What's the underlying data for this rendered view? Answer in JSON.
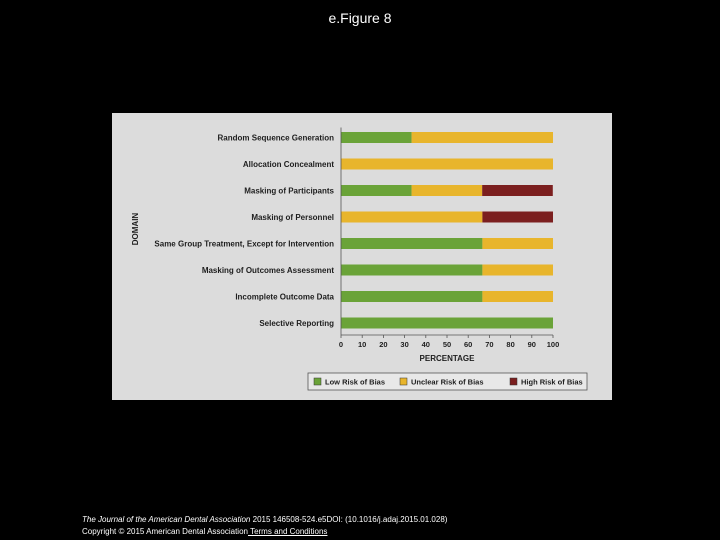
{
  "slide": {
    "title": "e.Figure 8"
  },
  "chart_data": {
    "type": "bar",
    "orientation": "horizontal",
    "stacked": true,
    "title": "",
    "xlabel": "PERCENTAGE",
    "ylabel": "DOMAIN",
    "xlim": [
      0,
      100
    ],
    "x_ticks": [
      "0",
      "10",
      "20",
      "30",
      "40",
      "50",
      "60",
      "70",
      "80",
      "90",
      "100"
    ],
    "legend_position": "bottom",
    "grid": false,
    "categories": [
      "Random Sequence Generation",
      "Allocation Concealment",
      "Masking of Participants",
      "Masking of Personnel",
      "Same Group Treatment, Except for Intervention",
      "Masking of Outcomes Assessment",
      "Incomplete Outcome Data",
      "Selective Reporting"
    ],
    "series": [
      {
        "name": "Low Risk of Bias",
        "color": "#6aa338",
        "values": [
          33.3,
          0,
          33.3,
          0,
          66.7,
          66.7,
          66.7,
          100
        ]
      },
      {
        "name": "Unclear Risk of Bias",
        "color": "#e8b52c",
        "values": [
          66.7,
          100,
          33.3,
          66.7,
          33.3,
          33.3,
          33.3,
          0
        ]
      },
      {
        "name": "High Risk of Bias",
        "color": "#7b1f1f",
        "values": [
          0,
          0,
          33.3,
          33.3,
          0,
          0,
          0,
          0
        ]
      }
    ]
  },
  "footer": {
    "journal": "The Journal of the American Dental Association",
    "citation": " 2015 146508-524.e5DOI: (10.1016/j.adaj.2015.01.028)",
    "copyright": "Copyright © 2015 American Dental Association",
    "terms_link": " Terms and Conditions"
  }
}
